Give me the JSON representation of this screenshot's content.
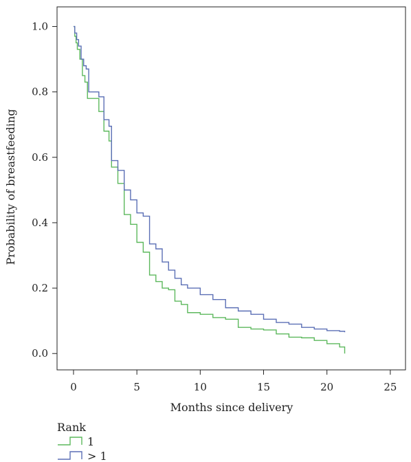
{
  "chart_data": {
    "type": "line",
    "step": true,
    "title": "",
    "xlabel": "Months since delivery",
    "ylabel": "Probability of breastfeeding",
    "xlim": [
      -1.3,
      26.2
    ],
    "ylim": [
      -0.05,
      1.06
    ],
    "xticks": [
      0,
      5,
      10,
      15,
      20,
      25
    ],
    "xtick_labels": [
      "0",
      "5",
      "10",
      "15",
      "20",
      "25"
    ],
    "yticks": [
      0.0,
      0.2,
      0.4,
      0.6,
      0.8,
      1.0
    ],
    "ytick_labels": [
      "0.0",
      "0.2",
      "0.4",
      "0.6",
      "0.8",
      "1.0"
    ],
    "grid": false,
    "legend": {
      "title": "Rank",
      "position": "bottom-left"
    },
    "series": [
      {
        "name": "1",
        "color": "#5cb85c",
        "x": [
          0,
          0.1,
          0.2,
          0.3,
          0.5,
          0.7,
          0.9,
          1.1,
          1.5,
          2.0,
          2.4,
          2.8,
          3.0,
          3.5,
          4.0,
          4.5,
          5.0,
          5.5,
          6.0,
          6.5,
          7.0,
          7.5,
          8.0,
          8.5,
          9.0,
          10.0,
          11.0,
          12.0,
          13.0,
          14.0,
          15.0,
          16.0,
          17.0,
          18.0,
          19.0,
          20.0,
          21.0,
          21.4
        ],
        "y": [
          1.0,
          0.97,
          0.95,
          0.93,
          0.9,
          0.85,
          0.83,
          0.78,
          0.78,
          0.74,
          0.68,
          0.65,
          0.57,
          0.52,
          0.425,
          0.395,
          0.34,
          0.31,
          0.24,
          0.22,
          0.2,
          0.195,
          0.16,
          0.15,
          0.125,
          0.12,
          0.11,
          0.105,
          0.08,
          0.075,
          0.072,
          0.06,
          0.05,
          0.048,
          0.04,
          0.03,
          0.02,
          0.0
        ]
      },
      {
        "name": "> 1",
        "color": "#5b6fb5",
        "x": [
          0,
          0.1,
          0.25,
          0.4,
          0.6,
          0.8,
          1.0,
          1.2,
          1.5,
          2.0,
          2.4,
          2.8,
          3.0,
          3.5,
          4.0,
          4.5,
          5.0,
          5.5,
          6.0,
          6.5,
          7.0,
          7.5,
          8.0,
          8.5,
          9.0,
          10.0,
          11.0,
          12.0,
          13.0,
          14.0,
          15.0,
          16.0,
          17.0,
          18.0,
          19.0,
          20.0,
          21.0,
          21.4
        ],
        "y": [
          1.0,
          0.98,
          0.96,
          0.94,
          0.9,
          0.88,
          0.87,
          0.8,
          0.8,
          0.785,
          0.715,
          0.695,
          0.59,
          0.56,
          0.5,
          0.47,
          0.43,
          0.42,
          0.335,
          0.32,
          0.28,
          0.255,
          0.23,
          0.21,
          0.2,
          0.18,
          0.165,
          0.14,
          0.13,
          0.12,
          0.105,
          0.095,
          0.09,
          0.08,
          0.075,
          0.07,
          0.068,
          0.065
        ]
      }
    ]
  }
}
